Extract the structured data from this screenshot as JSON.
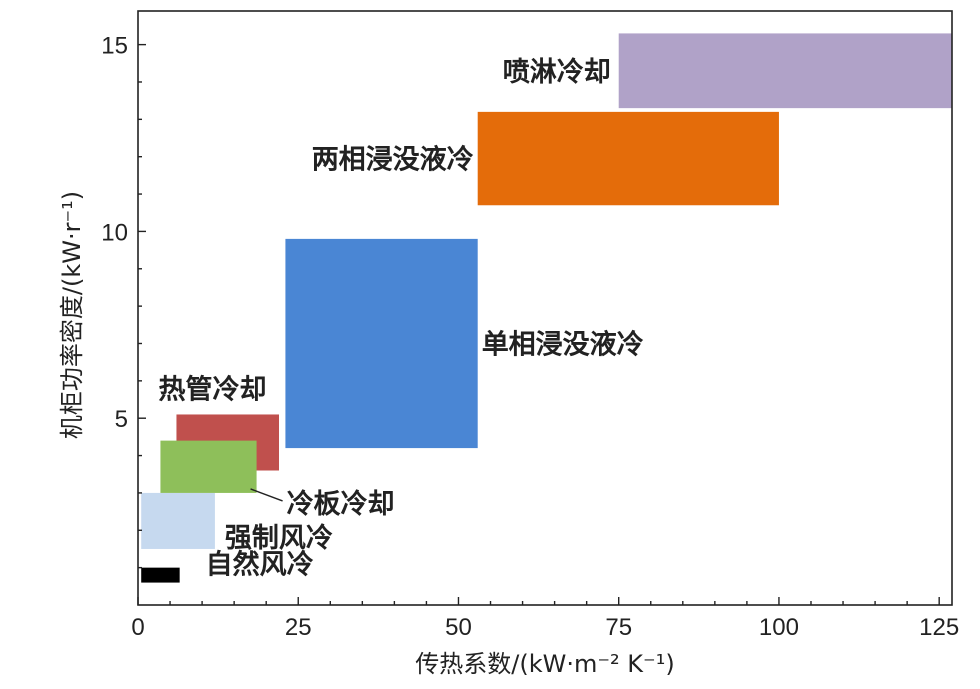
{
  "chart_data": {
    "type": "area",
    "title": "",
    "xlabel": "传热系数/(kW·m⁻² K⁻¹)",
    "ylabel": "机柜功率密度/(kW·r⁻¹)",
    "xlim": [
      0,
      127
    ],
    "ylim": [
      0,
      15.9
    ],
    "x_ticks": [
      0,
      25,
      50,
      75,
      100,
      125
    ],
    "y_ticks": [
      5,
      10,
      15
    ],
    "grid": false,
    "regions": [
      {
        "name": "自然风冷",
        "x": [
          0.5,
          6.5
        ],
        "y": [
          0.6,
          1.0
        ],
        "color": "#000000"
      },
      {
        "name": "强制风冷",
        "x": [
          0.5,
          12
        ],
        "y": [
          1.5,
          3.0
        ],
        "color": "#c6d9ef"
      },
      {
        "name": "冷板冷却",
        "x": [
          3.5,
          18.5
        ],
        "y": [
          3.0,
          4.4
        ],
        "color": "#8ebf5a"
      },
      {
        "name": "热管冷却",
        "x": [
          6,
          22
        ],
        "y": [
          3.6,
          5.1
        ],
        "color": "#c0504d"
      },
      {
        "name": "单相浸没液冷",
        "x": [
          23,
          53
        ],
        "y": [
          4.2,
          9.8
        ],
        "color": "#4a86d4"
      },
      {
        "name": "两相浸没液冷",
        "x": [
          53,
          100
        ],
        "y": [
          10.7,
          13.2
        ],
        "color": "#e46c0a"
      },
      {
        "name": "喷淋冷却",
        "x": [
          75,
          127
        ],
        "y": [
          13.3,
          15.3
        ],
        "color": "#b0a2c8"
      }
    ]
  }
}
